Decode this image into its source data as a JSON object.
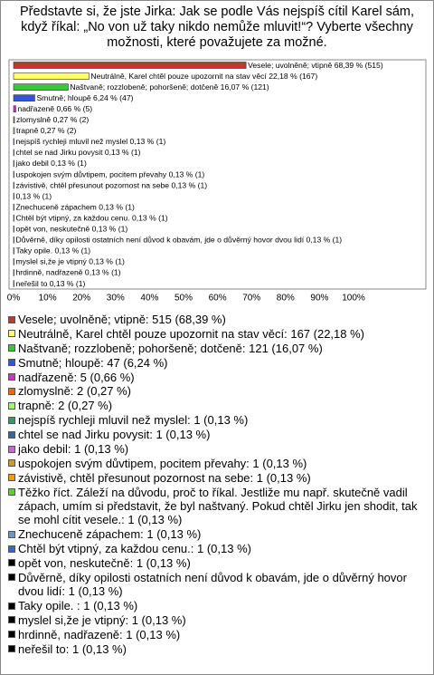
{
  "chart_data": {
    "type": "hbar",
    "title": "Představte si, že jste Jirka: Jak se podle Vás nejspíš cítil Karel sám, když říkal: „No von už taky nikdo nemůže mluvit!“? Vyberte všechny možnosti, které považujete za možné.",
    "categories": [
      "Vesele; uvolněně; vtipně 68,39 % (515)",
      "Neutrálně, Karel chtěl pouze upozornit na stav věcí 22,18 % (167)",
      "Naštvaně; rozzlobeně; pohoršeně; dotčeně 16,07 % (121)",
      "Smutně; hloupě 6,24 % (47)",
      "nadřazeně 0,66 % (5)",
      "zlomyslně 0,27 % (2)",
      "trapně 0,27 % (2)",
      "nejspíš rychleji mluvil než myslel 0,13 % (1)",
      "chtel se nad Jirku povysit 0,13 % (1)",
      "jako debil 0,13 % (1)",
      "uspokojen svým důvtipem, pocitem převahy 0,13 % (1)",
      "závistivě, chtěl přesunout pozornost na sebe 0,13 % (1)",
      "0,13 % (1)",
      "Znechuceně zápachem 0,13 % (1)",
      "Chtěl být vtipný, za každou cenu. 0,13 % (1)",
      "opět von, neskutečně 0,13 % (1)",
      "Důvěrně, díky opilosti ostatních není důvod k obavám, jde o důvěrný hovor dvou lidí 0,13 % (1)",
      "Taky opile.  0,13 % (1)",
      "myslel si,že je vtipný 0,13 % (1)",
      "hrdinně, nadřazeně 0,13 % (1)",
      "neřešil to 0,13 % (1)"
    ],
    "values": [
      68.39,
      22.18,
      16.07,
      6.24,
      0.66,
      0.27,
      0.27,
      0.13,
      0.13,
      0.13,
      0.13,
      0.13,
      0.13,
      0.13,
      0.13,
      0.13,
      0.13,
      0.13,
      0.13,
      0.13,
      0.13
    ],
    "colors": [
      "#c0392b",
      "#ffff66",
      "#33cc33",
      "#3355dd",
      "#cc33cc",
      "#ff6600",
      "#99ff66",
      "#339966",
      "#336699",
      "#cc66cc",
      "#cc9933",
      "#ff9900",
      "#66cc33",
      "#6699cc",
      "#3366cc",
      "#000000",
      "#000000",
      "#000000",
      "#000000",
      "#000000",
      "#000000"
    ],
    "legend": [
      "Vesele; uvolněně; vtipně: 515 (68,39 %)",
      "Neutrálně, Karel chtěl pouze upozornit na stav věcí: 167 (22,18 %)",
      "Naštvaně; rozzlobeně; pohoršeně; dotčeně: 121 (16,07 %)",
      "Smutně; hloupě: 47 (6,24 %)",
      "nadřazeně: 5 (0,66 %)",
      "zlomyslně: 2 (0,27 %)",
      "trapně: 2 (0,27 %)",
      "nejspíš rychleji mluvil než myslel: 1 (0,13 %)",
      "chtel se nad Jirku povysit: 1 (0,13 %)",
      "jako debil: 1 (0,13 %)",
      "uspokojen svým důvtipem, pocitem převahy: 1 (0,13 %)",
      "závistivě, chtěl přesunout pozornost na sebe: 1 (0,13 %)",
      "Těžko říct. Záleží na důvodu, proč to říkal. Jestliže mu např. skutečně vadil zápach, umím si představit, že byl naštvaný. Pokud chtěl Jirku jen shodit, tak se mohl cítit vesele.: 1 (0,13 %)",
      "Znechuceně zápachem: 1 (0,13 %)",
      "Chtěl být vtipný, za každou cenu.: 1 (0,13 %)",
      "opět von, neskutečně: 1 (0,13 %)",
      "Důvěrně, díky opilosti ostatních není důvod k obavám, jde o důvěrný hovor dvou lidí: 1 (0,13 %)",
      "Taky opile. : 1 (0,13 %)",
      "myslel si,že je vtipný: 1 (0,13 %)",
      "hrdinně, nadřazeně: 1 (0,13 %)",
      "neřešil to: 1 (0,13 %)"
    ],
    "xlim": [
      0,
      100
    ],
    "xticks": [
      {
        "value": 0,
        "label": "0%"
      },
      {
        "value": 10,
        "label": "10%"
      },
      {
        "value": 20,
        "label": "20%"
      },
      {
        "value": 30,
        "label": "30%"
      },
      {
        "value": 40,
        "label": "40%"
      },
      {
        "value": 50,
        "label": "50%"
      },
      {
        "value": 60,
        "label": "60%"
      },
      {
        "value": 70,
        "label": "70%"
      },
      {
        "value": 80,
        "label": "80%"
      },
      {
        "value": 90,
        "label": "90%"
      },
      {
        "value": 100,
        "label": "100%"
      }
    ]
  }
}
